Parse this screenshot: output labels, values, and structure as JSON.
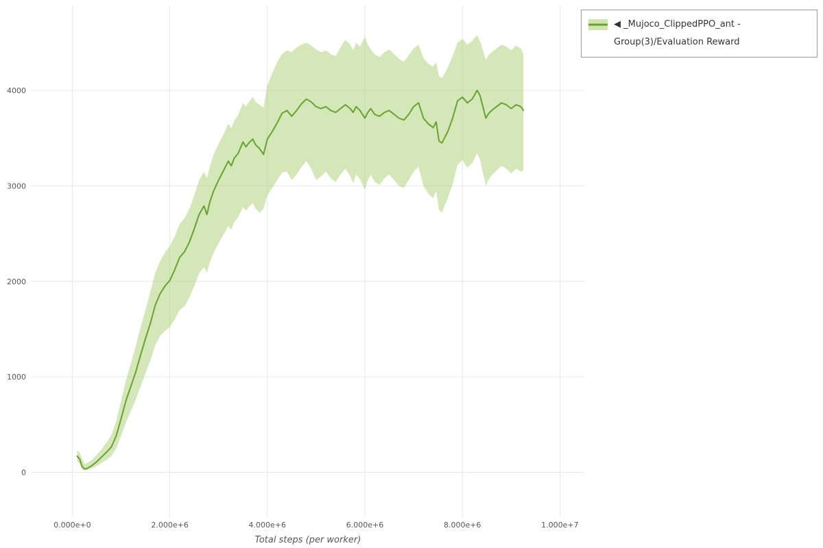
{
  "legend": {
    "label": "◀ _Mujoco_ClippedPPO_ant - Group(3)/Evaluation Reward"
  },
  "chart_data": {
    "type": "line",
    "title": "",
    "xlabel": "Total steps (per worker)",
    "ylabel": "",
    "grid": true,
    "legend_position": "top-right",
    "xlim": [
      -850000,
      10500000
    ],
    "ylim": [
      -470,
      4890
    ],
    "x_ticks": [
      {
        "v": 0,
        "label": "0.000e+0"
      },
      {
        "v": 2000000,
        "label": "2.000e+6"
      },
      {
        "v": 4000000,
        "label": "4.000e+6"
      },
      {
        "v": 6000000,
        "label": "6.000e+6"
      },
      {
        "v": 8000000,
        "label": "8.000e+6"
      },
      {
        "v": 10000000,
        "label": "1.000e+7"
      }
    ],
    "y_ticks": [
      {
        "v": 0,
        "label": "0"
      },
      {
        "v": 1000,
        "label": "1000"
      },
      {
        "v": 2000,
        "label": "2000"
      },
      {
        "v": 3000,
        "label": "3000"
      },
      {
        "v": 4000,
        "label": "4000"
      }
    ],
    "colors": {
      "line": "#68a22e",
      "band": "#a9cf72",
      "grid": "#e7e7e7",
      "tick_text": "#555555"
    },
    "series": [
      {
        "name": "_Mujoco_ClippedPPO_ant - Group(3)/Evaluation Reward",
        "x": [
          100000,
          150000,
          200000,
          250000,
          300000,
          400000,
          500000,
          600000,
          700000,
          800000,
          900000,
          1000000,
          1100000,
          1200000,
          1300000,
          1400000,
          1500000,
          1600000,
          1700000,
          1800000,
          1900000,
          2000000,
          2100000,
          2200000,
          2300000,
          2400000,
          2500000,
          2600000,
          2700000,
          2760000,
          2820000,
          2900000,
          3000000,
          3100000,
          3200000,
          3260000,
          3320000,
          3400000,
          3500000,
          3560000,
          3620000,
          3700000,
          3760000,
          3840000,
          3920000,
          4000000,
          4100000,
          4200000,
          4300000,
          4400000,
          4500000,
          4600000,
          4700000,
          4800000,
          4900000,
          5000000,
          5100000,
          5200000,
          5300000,
          5400000,
          5500000,
          5600000,
          5700000,
          5760000,
          5820000,
          5900000,
          6000000,
          6060000,
          6120000,
          6200000,
          6300000,
          6400000,
          6500000,
          6600000,
          6700000,
          6800000,
          6900000,
          7000000,
          7100000,
          7200000,
          7300000,
          7400000,
          7460000,
          7520000,
          7580000,
          7640000,
          7700000,
          7800000,
          7900000,
          8000000,
          8100000,
          8200000,
          8300000,
          8360000,
          8420000,
          8480000,
          8540000,
          8600000,
          8700000,
          8800000,
          8900000,
          9000000,
          9100000,
          9200000,
          9250000
        ],
        "mean": [
          170,
          140,
          60,
          35,
          40,
          70,
          110,
          160,
          210,
          265,
          380,
          560,
          750,
          900,
          1050,
          1230,
          1400,
          1560,
          1750,
          1870,
          1950,
          2010,
          2120,
          2250,
          2310,
          2410,
          2550,
          2700,
          2790,
          2700,
          2830,
          2950,
          3060,
          3160,
          3260,
          3210,
          3290,
          3340,
          3460,
          3410,
          3450,
          3490,
          3430,
          3390,
          3330,
          3490,
          3570,
          3660,
          3760,
          3790,
          3730,
          3790,
          3860,
          3910,
          3880,
          3830,
          3810,
          3830,
          3790,
          3770,
          3810,
          3850,
          3810,
          3770,
          3830,
          3790,
          3710,
          3770,
          3810,
          3750,
          3730,
          3770,
          3790,
          3750,
          3710,
          3690,
          3750,
          3830,
          3870,
          3710,
          3650,
          3610,
          3670,
          3470,
          3450,
          3510,
          3570,
          3710,
          3890,
          3930,
          3870,
          3910,
          4000,
          3950,
          3830,
          3710,
          3760,
          3790,
          3830,
          3870,
          3850,
          3810,
          3850,
          3830,
          3790
        ],
        "lower": [
          120,
          90,
          30,
          20,
          25,
          40,
          65,
          100,
          130,
          170,
          250,
          380,
          520,
          640,
          760,
          900,
          1040,
          1170,
          1330,
          1430,
          1480,
          1520,
          1600,
          1700,
          1740,
          1830,
          1950,
          2080,
          2150,
          2090,
          2200,
          2300,
          2400,
          2490,
          2580,
          2540,
          2620,
          2670,
          2780,
          2740,
          2780,
          2820,
          2760,
          2720,
          2760,
          2900,
          2980,
          3060,
          3140,
          3150,
          3060,
          3120,
          3200,
          3260,
          3180,
          3060,
          3100,
          3150,
          3080,
          3040,
          3120,
          3180,
          3100,
          3030,
          3120,
          3070,
          2960,
          3060,
          3120,
          3040,
          3010,
          3080,
          3120,
          3060,
          3000,
          2980,
          3060,
          3150,
          3200,
          3000,
          2920,
          2870,
          2950,
          2750,
          2720,
          2800,
          2870,
          3020,
          3220,
          3270,
          3190,
          3240,
          3340,
          3280,
          3140,
          3000,
          3070,
          3110,
          3160,
          3210,
          3180,
          3130,
          3180,
          3150,
          3160
        ],
        "upper": [
          230,
          210,
          140,
          90,
          95,
          130,
          180,
          240,
          310,
          390,
          530,
          750,
          960,
          1140,
          1320,
          1520,
          1700,
          1890,
          2090,
          2210,
          2300,
          2370,
          2470,
          2600,
          2660,
          2760,
          2900,
          3060,
          3150,
          3080,
          3200,
          3330,
          3440,
          3540,
          3650,
          3600,
          3680,
          3740,
          3870,
          3830,
          3880,
          3930,
          3880,
          3850,
          3820,
          4050,
          4180,
          4300,
          4380,
          4420,
          4400,
          4450,
          4480,
          4500,
          4470,
          4430,
          4400,
          4420,
          4380,
          4360,
          4450,
          4530,
          4480,
          4420,
          4500,
          4460,
          4560,
          4480,
          4430,
          4380,
          4350,
          4400,
          4430,
          4380,
          4330,
          4300,
          4370,
          4440,
          4480,
          4340,
          4280,
          4250,
          4300,
          4150,
          4130,
          4180,
          4240,
          4360,
          4500,
          4540,
          4480,
          4520,
          4580,
          4520,
          4420,
          4320,
          4370,
          4400,
          4440,
          4480,
          4460,
          4420,
          4470,
          4440,
          4380
        ]
      }
    ]
  }
}
